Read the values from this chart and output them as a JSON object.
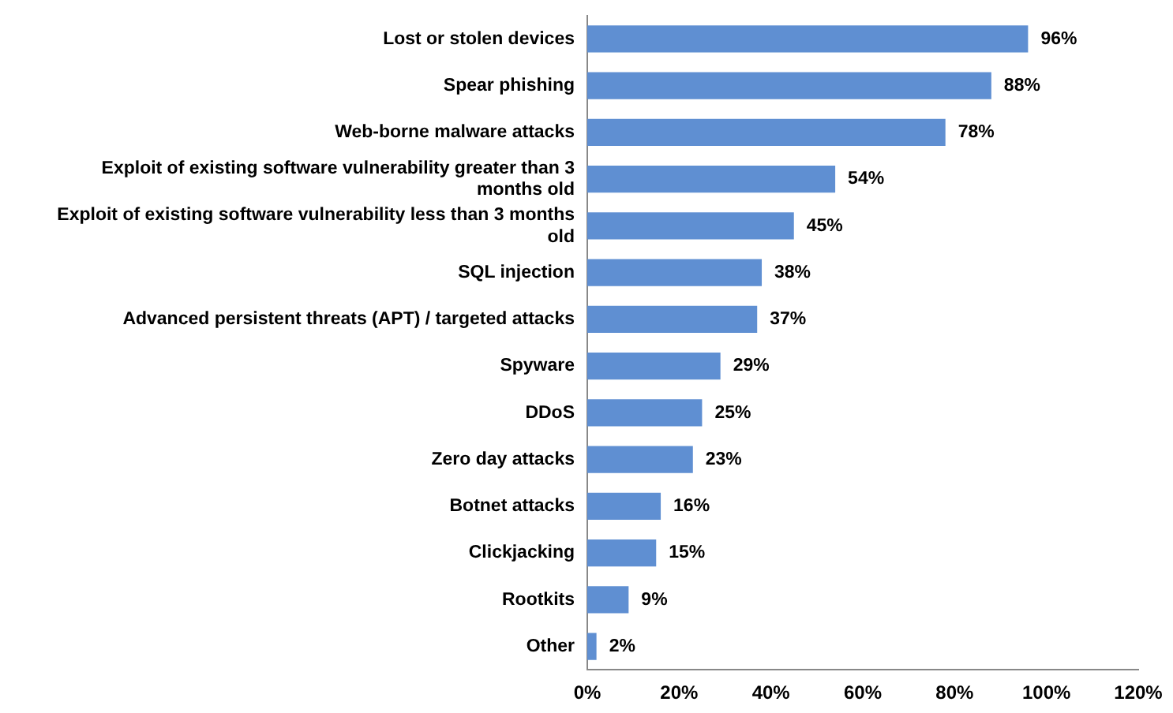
{
  "chart_data": {
    "type": "bar",
    "orientation": "horizontal",
    "categories": [
      "Lost or stolen devices",
      "Spear phishing",
      "Web-borne malware attacks",
      "Exploit of existing software vulnerability greater than 3 months old",
      "Exploit of existing software vulnerability less than 3 months old",
      "SQL injection",
      "Advanced persistent threats (APT) / targeted attacks",
      "Spyware",
      "DDoS",
      "Zero day attacks",
      "Botnet attacks",
      "Clickjacking",
      "Rootkits",
      "Other"
    ],
    "values": [
      96,
      88,
      78,
      54,
      45,
      38,
      37,
      29,
      25,
      23,
      16,
      15,
      9,
      2
    ],
    "value_labels": [
      "96%",
      "88%",
      "78%",
      "54%",
      "45%",
      "38%",
      "37%",
      "29%",
      "25%",
      "23%",
      "16%",
      "15%",
      "9%",
      "2%"
    ],
    "color": "#5f8fd2",
    "xlim": [
      0,
      120
    ],
    "xticks": [
      {
        "value": 0,
        "label": "0%"
      },
      {
        "value": 20,
        "label": "20%"
      },
      {
        "value": 40,
        "label": "40%"
      },
      {
        "value": 60,
        "label": "60%"
      },
      {
        "value": 80,
        "label": "80%"
      },
      {
        "value": 100,
        "label": "100%"
      },
      {
        "value": 120,
        "label": "120%"
      }
    ],
    "grid": false,
    "legend": false
  }
}
